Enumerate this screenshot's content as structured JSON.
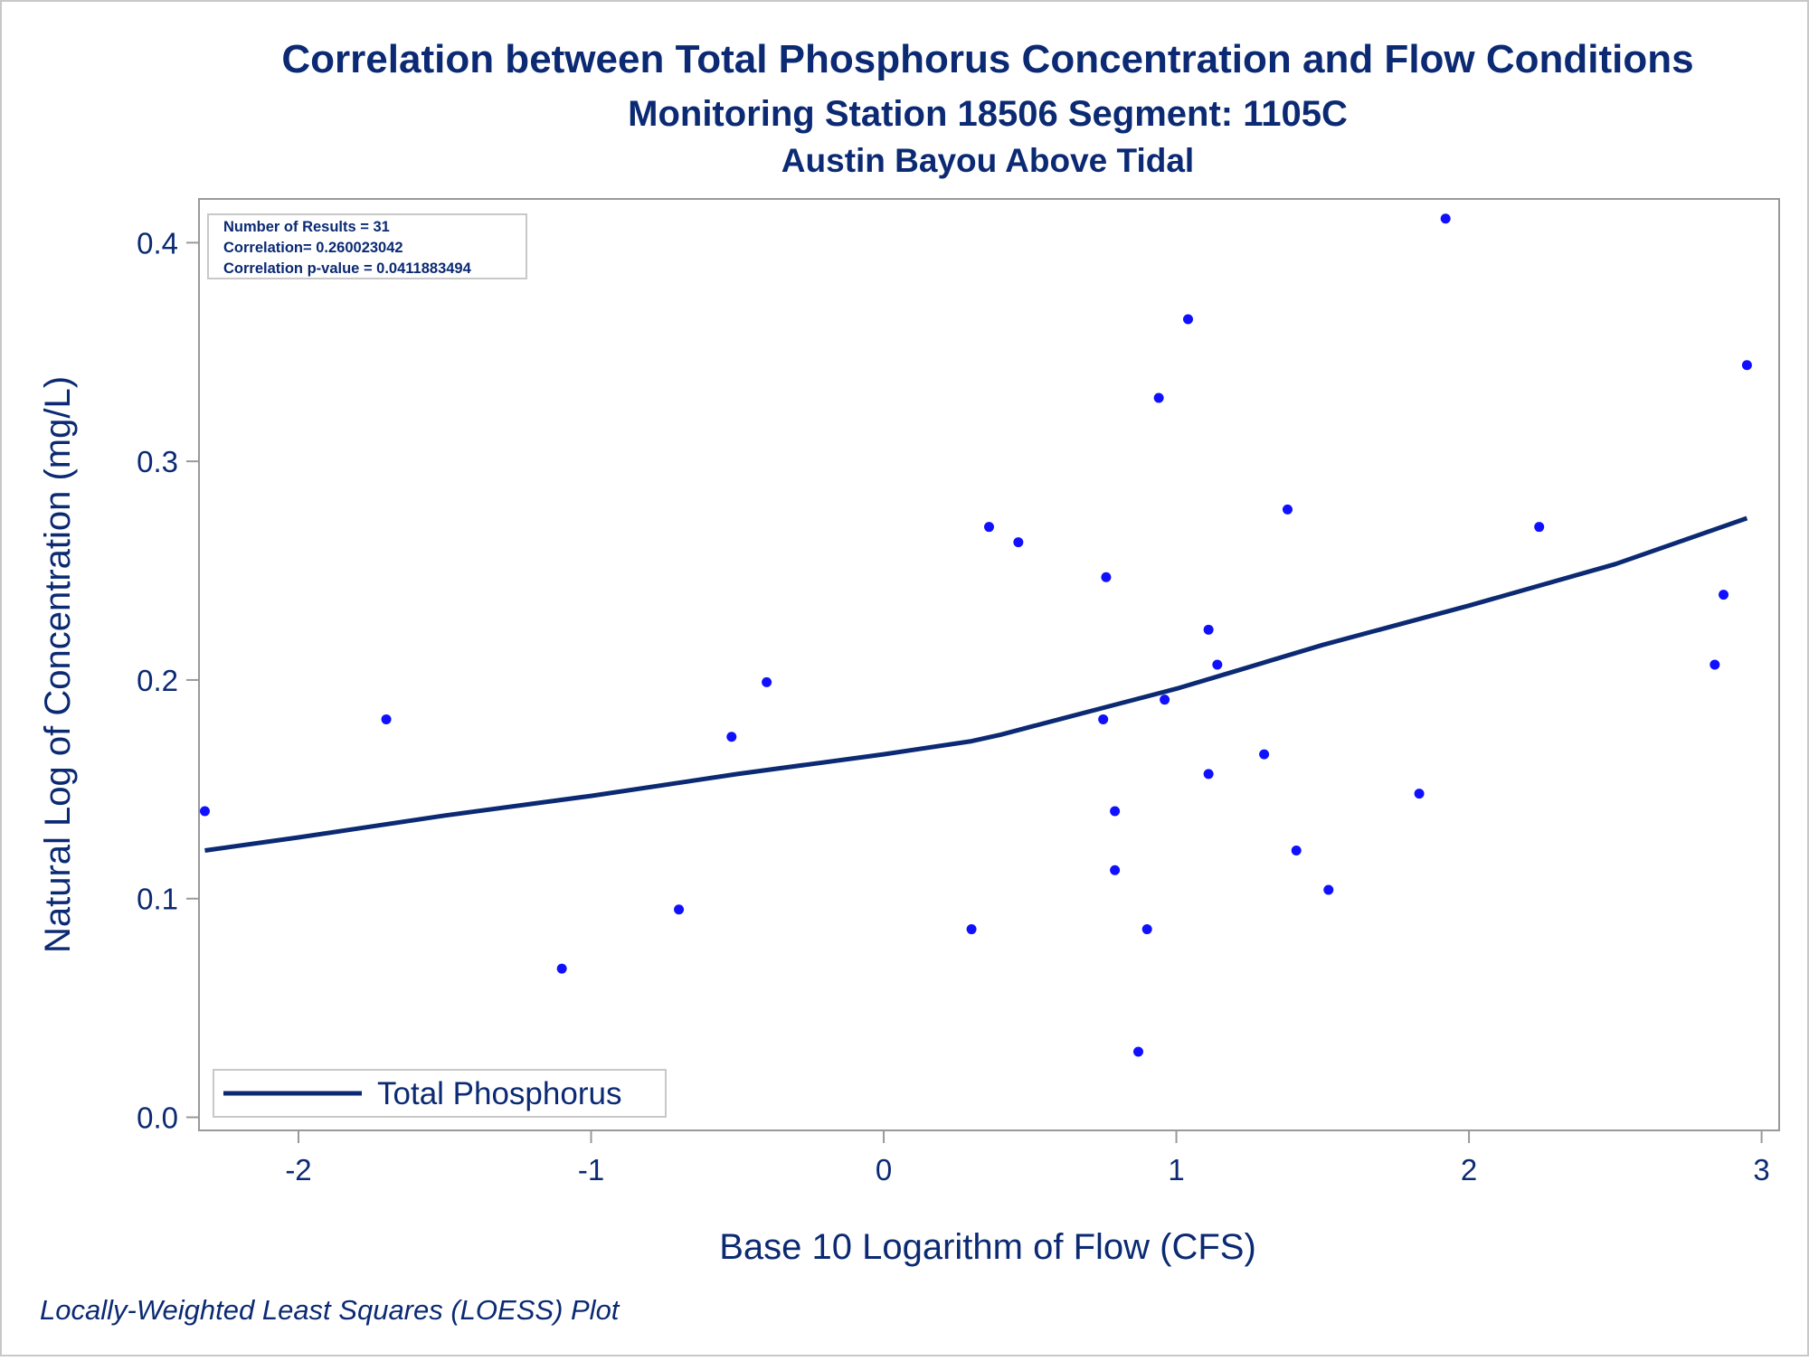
{
  "chart_data": {
    "type": "scatter",
    "title": "Correlation between Total Phosphorus Concentration and Flow Conditions",
    "subtitle": "Monitoring Station 18506 Segment: 1105C",
    "subtitle2": "Austin Bayou Above Tidal",
    "xlabel": "Base 10 Logarithm of Flow (CFS)",
    "ylabel": "Natural Log of Concentration (mg/L)",
    "footnote": "Locally-Weighted Least Squares (LOESS) Plot",
    "xlim": [
      -2.34,
      3.06
    ],
    "ylim": [
      -0.006,
      0.42
    ],
    "x_ticks": [
      -2,
      -1,
      0,
      1,
      2,
      3
    ],
    "x_tick_labels": [
      "-2",
      "-1",
      "0",
      "1",
      "2",
      "3"
    ],
    "y_ticks": [
      0.0,
      0.1,
      0.2,
      0.3,
      0.4
    ],
    "y_tick_labels": [
      "0.0",
      "0.1",
      "0.2",
      "0.3",
      "0.4"
    ],
    "grid": false,
    "stats": [
      "Number of Results = 31",
      "Correlation= 0.260023042",
      "Correlation p-value = 0.0411883494"
    ],
    "legend": {
      "position": "bottom-left",
      "label": "Total Phosphorus"
    },
    "colors": {
      "points": "#1010ff",
      "line": "#0b2a73",
      "text": "#0b2a73",
      "frame": "#999999"
    },
    "points": [
      {
        "x": -2.32,
        "y": 0.14
      },
      {
        "x": -1.7,
        "y": 0.182
      },
      {
        "x": -1.1,
        "y": 0.068
      },
      {
        "x": -0.7,
        "y": 0.095
      },
      {
        "x": -0.52,
        "y": 0.174
      },
      {
        "x": -0.4,
        "y": 0.199
      },
      {
        "x": 0.3,
        "y": 0.086
      },
      {
        "x": 0.36,
        "y": 0.27
      },
      {
        "x": 0.46,
        "y": 0.263
      },
      {
        "x": 0.75,
        "y": 0.182
      },
      {
        "x": 0.76,
        "y": 0.247
      },
      {
        "x": 0.79,
        "y": 0.14
      },
      {
        "x": 0.79,
        "y": 0.113
      },
      {
        "x": 0.87,
        "y": 0.03
      },
      {
        "x": 0.9,
        "y": 0.086
      },
      {
        "x": 0.94,
        "y": 0.329
      },
      {
        "x": 0.96,
        "y": 0.191
      },
      {
        "x": 1.04,
        "y": 0.365
      },
      {
        "x": 1.11,
        "y": 0.157
      },
      {
        "x": 1.11,
        "y": 0.223
      },
      {
        "x": 1.14,
        "y": 0.207
      },
      {
        "x": 1.3,
        "y": 0.166
      },
      {
        "x": 1.38,
        "y": 0.278
      },
      {
        "x": 1.41,
        "y": 0.122
      },
      {
        "x": 1.52,
        "y": 0.104
      },
      {
        "x": 1.83,
        "y": 0.148
      },
      {
        "x": 1.92,
        "y": 0.411
      },
      {
        "x": 2.24,
        "y": 0.27
      },
      {
        "x": 2.84,
        "y": 0.207
      },
      {
        "x": 2.87,
        "y": 0.239
      },
      {
        "x": 2.95,
        "y": 0.344
      }
    ],
    "series": [
      {
        "name": "Total Phosphorus",
        "type": "line",
        "x": [
          -2.32,
          -2.0,
          -1.5,
          -1.0,
          -0.5,
          0.0,
          0.3,
          0.4,
          0.6,
          0.8,
          1.0,
          1.2,
          1.5,
          2.0,
          2.5,
          2.95
        ],
        "y": [
          0.122,
          0.128,
          0.138,
          0.147,
          0.157,
          0.166,
          0.172,
          0.175,
          0.182,
          0.189,
          0.196,
          0.204,
          0.216,
          0.234,
          0.253,
          0.274
        ]
      }
    ]
  }
}
